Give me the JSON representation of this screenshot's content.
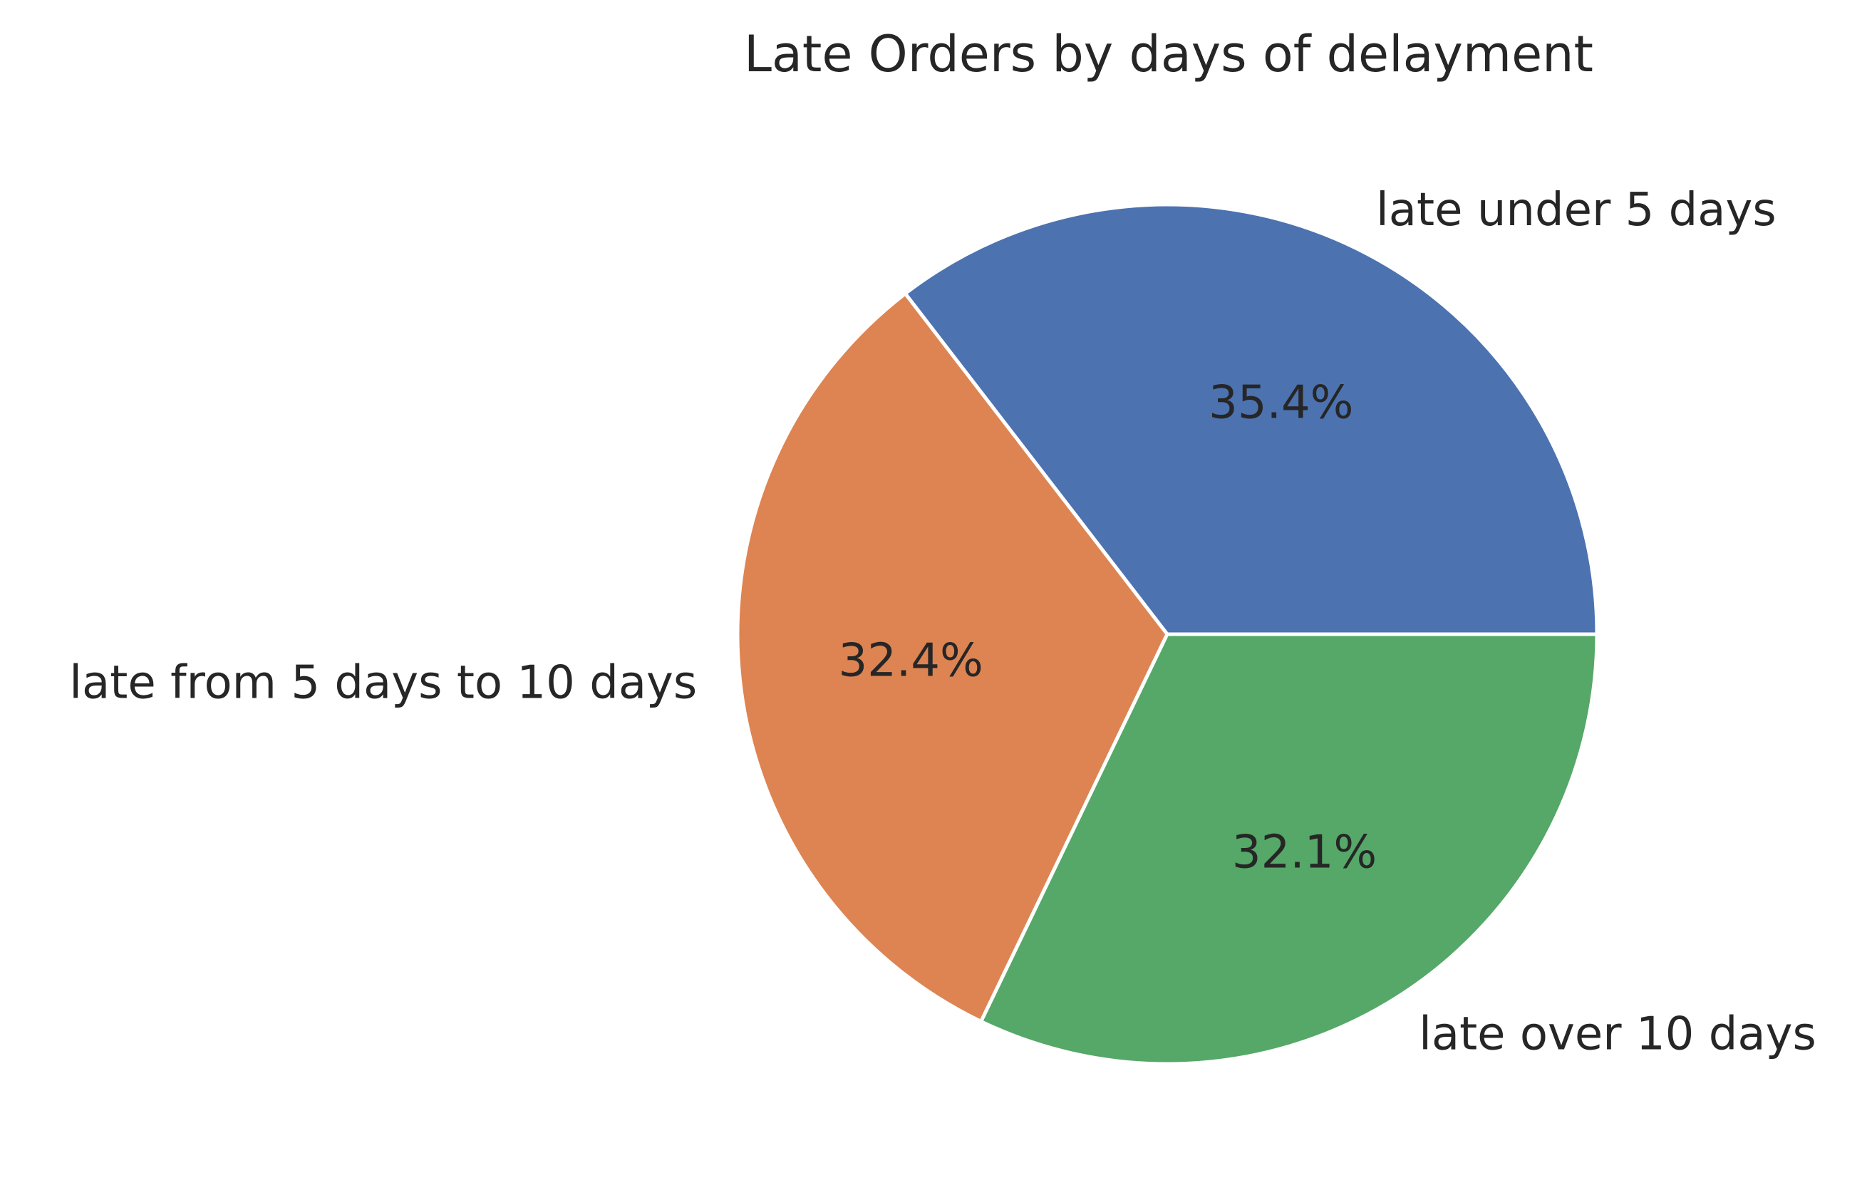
{
  "chart_data": {
    "type": "pie",
    "title": "Late Orders by days of delayment",
    "slices": [
      {
        "label": "late under 5 days",
        "percent": 35.4,
        "percent_label": "35.4%",
        "color": "#4c72b0"
      },
      {
        "label": "late from 5 days to 10 days",
        "percent": 32.4,
        "percent_label": "32.4%",
        "color": "#dd8452"
      },
      {
        "label": "late over 10 days",
        "percent": 32.1,
        "percent_label": "32.1%",
        "color": "#55a868"
      }
    ],
    "start_angle_deg": 0,
    "direction": "counterclockwise",
    "legend": "none"
  }
}
